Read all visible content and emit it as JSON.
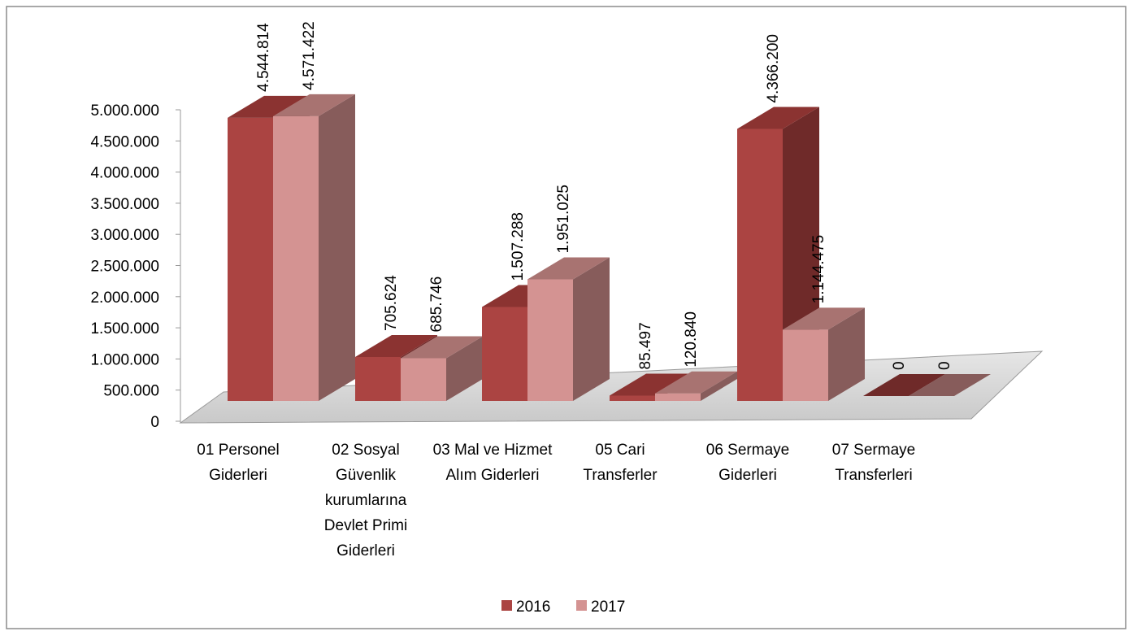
{
  "chart_data": {
    "type": "bar3d",
    "categories": [
      "01 Personel Giderleri",
      "02 Sosyal Güvenlik kurumlarına Devlet Primi Giderleri",
      "03 Mal ve Hizmet Alım Giderleri",
      "05 Cari Transferler",
      "06 Sermaye Giderleri",
      "07 Sermaye Transferleri"
    ],
    "series": [
      {
        "name": "2016",
        "color": "#ab4442",
        "values": [
          4544814,
          705624,
          1507288,
          85497,
          4366200,
          0
        ],
        "value_labels": [
          "4.544.814",
          "705.624",
          "1.507.288",
          "85.497",
          "4.366.200",
          "0"
        ]
      },
      {
        "name": "2017",
        "color": "#d49392",
        "values": [
          4571422,
          685746,
          1951025,
          120840,
          1144475,
          0
        ],
        "value_labels": [
          "4.571.422",
          "685.746",
          "1.951.025",
          "120.840",
          "1.144.475",
          "0"
        ]
      }
    ],
    "ylim": [
      0,
      5000000
    ],
    "yticks": [
      {
        "value": 0,
        "label": "0"
      },
      {
        "value": 500000,
        "label": "500.000"
      },
      {
        "value": 1000000,
        "label": "1.000.000"
      },
      {
        "value": 1500000,
        "label": "1.500.000"
      },
      {
        "value": 2000000,
        "label": "2.000.000"
      },
      {
        "value": 2500000,
        "label": "2.500.000"
      },
      {
        "value": 3000000,
        "label": "3.000.000"
      },
      {
        "value": 3500000,
        "label": "3.500.000"
      },
      {
        "value": 4000000,
        "label": "4.000.000"
      },
      {
        "value": 4500000,
        "label": "4.500.000"
      },
      {
        "value": 5000000,
        "label": "5.000.000"
      }
    ],
    "legend": "bottom"
  }
}
